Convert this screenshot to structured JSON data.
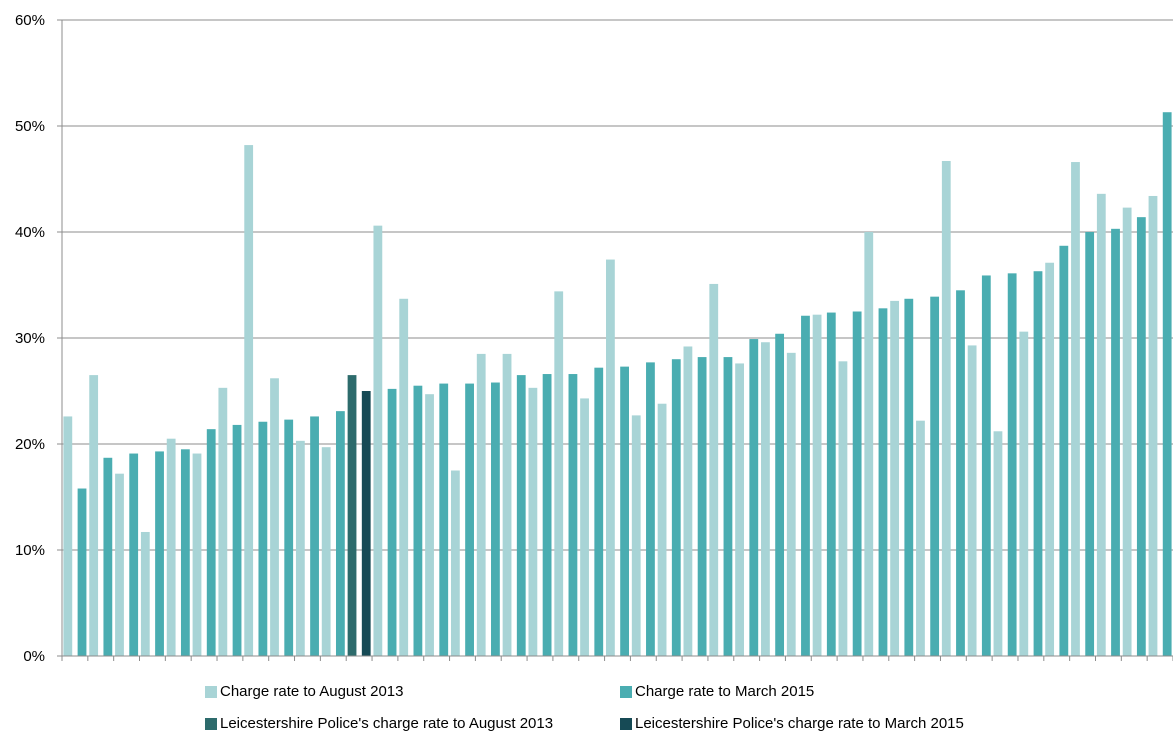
{
  "chart_data": {
    "type": "bar",
    "y_ticks": [
      "0%",
      "10%",
      "20%",
      "30%",
      "40%",
      "50%",
      "60%"
    ],
    "ylim": [
      0,
      60
    ],
    "grid": true,
    "legend_position": "bottom",
    "series": [
      {
        "name": "Charge rate to August 2013",
        "color": "#a8d4d6",
        "values": [
          22.6,
          26.5,
          17.2,
          11.7,
          20.5,
          19.1,
          25.3,
          48.2,
          26.2,
          20.3,
          19.7,
          null,
          40.6,
          33.7,
          24.7,
          17.5,
          28.5,
          28.5,
          25.3,
          34.4,
          24.3,
          37.4,
          22.7,
          23.8,
          29.2,
          35.1,
          27.6,
          29.6,
          28.6,
          32.2,
          27.8,
          40.0,
          33.5,
          22.2,
          46.7,
          29.3,
          21.2,
          30.6,
          37.1,
          46.6,
          43.6,
          42.3,
          43.4
        ]
      },
      {
        "name": "Charge rate to March 2015",
        "color": "#4aadb1",
        "values": [
          15.8,
          18.7,
          19.1,
          19.3,
          19.5,
          21.4,
          21.8,
          22.1,
          22.3,
          22.6,
          23.1,
          null,
          25.2,
          25.5,
          25.7,
          25.7,
          25.8,
          26.5,
          26.6,
          26.6,
          27.2,
          27.3,
          27.7,
          28.0,
          28.2,
          28.2,
          29.9,
          30.4,
          32.1,
          32.4,
          32.5,
          32.8,
          33.7,
          33.9,
          34.5,
          35.9,
          36.1,
          36.3,
          38.7,
          40.0,
          40.3,
          41.4,
          51.3
        ]
      },
      {
        "name": "Leicestershire Police's charge rate to August 2013",
        "color": "#2d6b6c",
        "values": [
          null,
          null,
          null,
          null,
          null,
          null,
          null,
          null,
          null,
          null,
          null,
          26.5,
          null,
          null,
          null,
          null,
          null,
          null,
          null,
          null,
          null,
          null,
          null,
          null,
          null,
          null,
          null,
          null,
          null,
          null,
          null,
          null,
          null,
          null,
          null,
          null,
          null,
          null,
          null,
          null,
          null,
          null,
          null
        ]
      },
      {
        "name": "Leicestershire Police's charge rate to March 2015",
        "color": "#164a55",
        "values": [
          null,
          null,
          null,
          null,
          null,
          null,
          null,
          null,
          null,
          null,
          null,
          25.0,
          null,
          null,
          null,
          null,
          null,
          null,
          null,
          null,
          null,
          null,
          null,
          null,
          null,
          null,
          null,
          null,
          null,
          null,
          null,
          null,
          null,
          null,
          null,
          null,
          null,
          null,
          null,
          null,
          null,
          null,
          null
        ]
      }
    ]
  }
}
